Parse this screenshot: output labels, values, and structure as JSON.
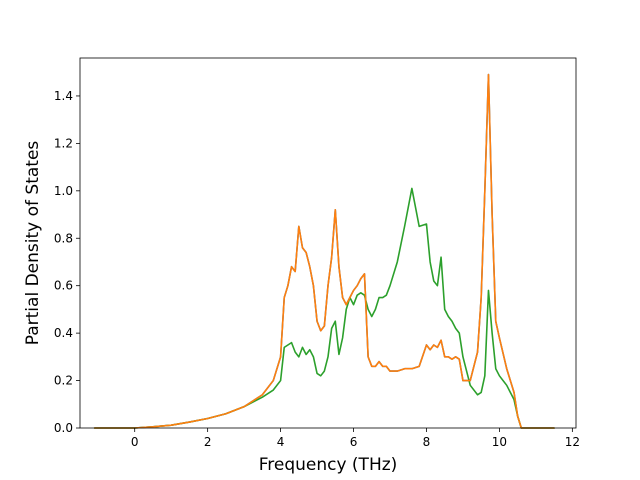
{
  "chart_data": {
    "type": "line",
    "title": "",
    "xlabel": "Frequency (THz)",
    "ylabel": "Partial Density of States",
    "xlim": [
      -1.5,
      12.1
    ],
    "ylim": [
      0.0,
      1.56
    ],
    "xticks": [
      0,
      2,
      4,
      6,
      8,
      10,
      12
    ],
    "yticks": [
      0.0,
      0.2,
      0.4,
      0.6,
      0.8,
      1.0,
      1.2,
      1.4
    ],
    "xtick_labels": [
      "0",
      "2",
      "4",
      "6",
      "8",
      "10",
      "12"
    ],
    "ytick_labels": [
      "0.0",
      "0.2",
      "0.4",
      "0.6",
      "0.8",
      "1.0",
      "1.2",
      "1.4"
    ],
    "grid": false,
    "legend": "none",
    "series": [
      {
        "color": "#1f77b4",
        "x": [
          -1.1,
          0.0,
          0.5,
          1.0,
          1.5,
          2.0,
          2.5,
          3.0,
          3.5,
          3.8,
          4.0,
          4.1,
          4.2,
          4.3,
          4.4,
          4.5,
          4.6,
          4.7,
          4.8,
          4.9,
          5.0,
          5.1,
          5.2,
          5.3,
          5.4,
          5.5,
          5.6,
          5.7,
          5.8,
          5.9,
          6.0,
          6.1,
          6.2,
          6.3,
          6.4,
          6.5,
          6.6,
          6.7,
          6.8,
          6.9,
          7.0,
          7.2,
          7.4,
          7.6,
          7.8,
          8.0,
          8.1,
          8.2,
          8.3,
          8.4,
          8.5,
          8.6,
          8.7,
          8.8,
          8.9,
          9.0,
          9.2,
          9.4,
          9.5,
          9.6,
          9.7,
          9.8,
          9.9,
          10.0,
          10.2,
          10.4,
          10.5,
          10.6,
          11.0,
          11.5
        ],
        "values": [
          0.0,
          0.0,
          0.005,
          0.012,
          0.025,
          0.04,
          0.06,
          0.09,
          0.14,
          0.2,
          0.3,
          0.55,
          0.6,
          0.68,
          0.66,
          0.85,
          0.76,
          0.74,
          0.68,
          0.6,
          0.45,
          0.41,
          0.43,
          0.6,
          0.72,
          0.92,
          0.68,
          0.55,
          0.52,
          0.55,
          0.58,
          0.6,
          0.63,
          0.65,
          0.3,
          0.26,
          0.26,
          0.28,
          0.26,
          0.26,
          0.24,
          0.24,
          0.25,
          0.25,
          0.26,
          0.35,
          0.33,
          0.35,
          0.34,
          0.37,
          0.3,
          0.3,
          0.29,
          0.3,
          0.29,
          0.2,
          0.2,
          0.32,
          0.55,
          1.0,
          1.49,
          0.9,
          0.45,
          0.38,
          0.25,
          0.15,
          0.05,
          0.0,
          0.0,
          0.0
        ]
      },
      {
        "color": "#2ca02c",
        "x": [
          -1.1,
          0.0,
          0.5,
          1.0,
          1.5,
          2.0,
          2.5,
          3.0,
          3.5,
          3.8,
          4.0,
          4.1,
          4.2,
          4.3,
          4.4,
          4.5,
          4.6,
          4.7,
          4.8,
          4.9,
          5.0,
          5.1,
          5.2,
          5.3,
          5.4,
          5.5,
          5.6,
          5.7,
          5.8,
          5.9,
          6.0,
          6.1,
          6.2,
          6.3,
          6.4,
          6.5,
          6.6,
          6.7,
          6.8,
          6.9,
          7.0,
          7.2,
          7.4,
          7.6,
          7.8,
          8.0,
          8.1,
          8.2,
          8.3,
          8.4,
          8.5,
          8.6,
          8.7,
          8.8,
          8.9,
          9.0,
          9.2,
          9.4,
          9.5,
          9.6,
          9.7,
          9.8,
          9.9,
          10.0,
          10.2,
          10.4,
          10.5,
          10.6,
          11.0,
          11.5
        ],
        "values": [
          0.0,
          0.0,
          0.005,
          0.012,
          0.025,
          0.04,
          0.06,
          0.09,
          0.13,
          0.16,
          0.2,
          0.34,
          0.35,
          0.36,
          0.32,
          0.3,
          0.34,
          0.31,
          0.33,
          0.3,
          0.23,
          0.22,
          0.24,
          0.3,
          0.42,
          0.45,
          0.31,
          0.38,
          0.5,
          0.55,
          0.52,
          0.56,
          0.57,
          0.56,
          0.5,
          0.47,
          0.5,
          0.55,
          0.55,
          0.56,
          0.6,
          0.7,
          0.85,
          1.01,
          0.85,
          0.86,
          0.7,
          0.62,
          0.6,
          0.72,
          0.5,
          0.47,
          0.45,
          0.42,
          0.4,
          0.3,
          0.18,
          0.14,
          0.15,
          0.22,
          0.58,
          0.4,
          0.25,
          0.22,
          0.18,
          0.12,
          0.05,
          0.0,
          0.0,
          0.0
        ]
      },
      {
        "color": "#ff7f0e",
        "x": [
          -1.1,
          0.0,
          0.5,
          1.0,
          1.5,
          2.0,
          2.5,
          3.0,
          3.5,
          3.8,
          4.0,
          4.1,
          4.2,
          4.3,
          4.4,
          4.5,
          4.6,
          4.7,
          4.8,
          4.9,
          5.0,
          5.1,
          5.2,
          5.3,
          5.4,
          5.5,
          5.6,
          5.7,
          5.8,
          5.9,
          6.0,
          6.1,
          6.2,
          6.3,
          6.4,
          6.5,
          6.6,
          6.7,
          6.8,
          6.9,
          7.0,
          7.2,
          7.4,
          7.6,
          7.8,
          8.0,
          8.1,
          8.2,
          8.3,
          8.4,
          8.5,
          8.6,
          8.7,
          8.8,
          8.9,
          9.0,
          9.2,
          9.4,
          9.5,
          9.6,
          9.7,
          9.8,
          9.9,
          10.0,
          10.2,
          10.4,
          10.5,
          10.6,
          11.0,
          11.5
        ],
        "values": [
          0.0,
          0.0,
          0.005,
          0.012,
          0.025,
          0.04,
          0.06,
          0.09,
          0.14,
          0.2,
          0.3,
          0.55,
          0.6,
          0.68,
          0.66,
          0.85,
          0.76,
          0.74,
          0.68,
          0.6,
          0.45,
          0.41,
          0.43,
          0.6,
          0.72,
          0.92,
          0.68,
          0.55,
          0.52,
          0.55,
          0.58,
          0.6,
          0.63,
          0.65,
          0.3,
          0.26,
          0.26,
          0.28,
          0.26,
          0.26,
          0.24,
          0.24,
          0.25,
          0.25,
          0.26,
          0.35,
          0.33,
          0.35,
          0.34,
          0.37,
          0.3,
          0.3,
          0.29,
          0.3,
          0.29,
          0.2,
          0.2,
          0.32,
          0.55,
          1.0,
          1.49,
          0.9,
          0.45,
          0.38,
          0.25,
          0.15,
          0.05,
          0.0,
          0.0,
          0.0
        ]
      }
    ]
  }
}
